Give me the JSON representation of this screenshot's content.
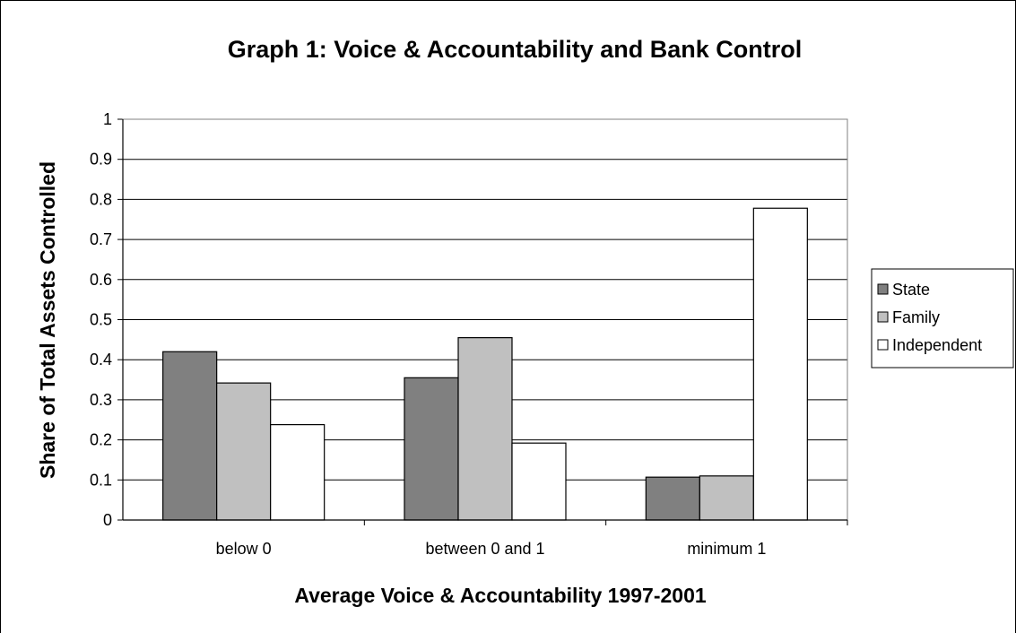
{
  "chart_data": {
    "type": "bar",
    "title": "Graph 1: Voice & Accountability and Bank Control",
    "xlabel": "Average Voice & Accountability 1997-2001",
    "ylabel": "Share of Total Assets Controlled",
    "categories": [
      "below 0",
      "between 0 and 1",
      "minimum 1"
    ],
    "series": [
      {
        "name": "State",
        "color": "#808080",
        "values": [
          0.42,
          0.355,
          0.107
        ]
      },
      {
        "name": "Family",
        "color": "#c0c0c0",
        "values": [
          0.342,
          0.455,
          0.11
        ]
      },
      {
        "name": "Independent",
        "color": "#ffffff",
        "values": [
          0.238,
          0.192,
          0.778
        ]
      }
    ],
    "ylim": [
      0,
      1
    ],
    "yticks": [
      "0",
      "0.1",
      "0.2",
      "0.3",
      "0.4",
      "0.5",
      "0.6",
      "0.7",
      "0.8",
      "0.9",
      "1"
    ],
    "grid": true,
    "legend_position": "right"
  }
}
